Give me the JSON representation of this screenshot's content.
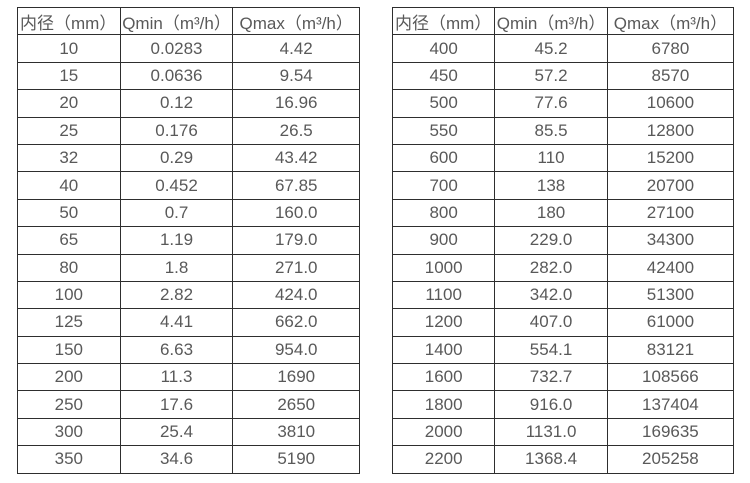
{
  "colors": {
    "background": "#ffffff",
    "text": "#595959",
    "border": "#2e2e2e"
  },
  "tables": [
    {
      "name": "small-diameter-flow-table",
      "headers": [
        "内径（mm）",
        "Qmin（m³/h）",
        "Qmax（m³/h）"
      ],
      "rows": [
        [
          "10",
          "0.0283",
          "4.42"
        ],
        [
          "15",
          "0.0636",
          "9.54"
        ],
        [
          "20",
          "0.12",
          "16.96"
        ],
        [
          "25",
          "0.176",
          "26.5"
        ],
        [
          "32",
          "0.29",
          "43.42"
        ],
        [
          "40",
          "0.452",
          "67.85"
        ],
        [
          "50",
          "0.7",
          "160.0"
        ],
        [
          "65",
          "1.19",
          "179.0"
        ],
        [
          "80",
          "1.8",
          "271.0"
        ],
        [
          "100",
          "2.82",
          "424.0"
        ],
        [
          "125",
          "4.41",
          "662.0"
        ],
        [
          "150",
          "6.63",
          "954.0"
        ],
        [
          "200",
          "11.3",
          "1690"
        ],
        [
          "250",
          "17.6",
          "2650"
        ],
        [
          "300",
          "25.4",
          "3810"
        ],
        [
          "350",
          "34.6",
          "5190"
        ]
      ]
    },
    {
      "name": "large-diameter-flow-table",
      "headers": [
        "内径（mm）",
        "Qmin（m³/h）",
        "Qmax（m³/h）"
      ],
      "rows": [
        [
          "400",
          "45.2",
          "6780"
        ],
        [
          "450",
          "57.2",
          "8570"
        ],
        [
          "500",
          "77.6",
          "10600"
        ],
        [
          "550",
          "85.5",
          "12800"
        ],
        [
          "600",
          "110",
          "15200"
        ],
        [
          "700",
          "138",
          "20700"
        ],
        [
          "800",
          "180",
          "27100"
        ],
        [
          "900",
          "229.0",
          "34300"
        ],
        [
          "1000",
          "282.0",
          "42400"
        ],
        [
          "1100",
          "342.0",
          "51300"
        ],
        [
          "1200",
          "407.0",
          "61000"
        ],
        [
          "1400",
          "554.1",
          "83121"
        ],
        [
          "1600",
          "732.7",
          "108566"
        ],
        [
          "1800",
          "916.0",
          "137404"
        ],
        [
          "2000",
          "1131.0",
          "169635"
        ],
        [
          "2200",
          "1368.4",
          "205258"
        ]
      ]
    }
  ]
}
